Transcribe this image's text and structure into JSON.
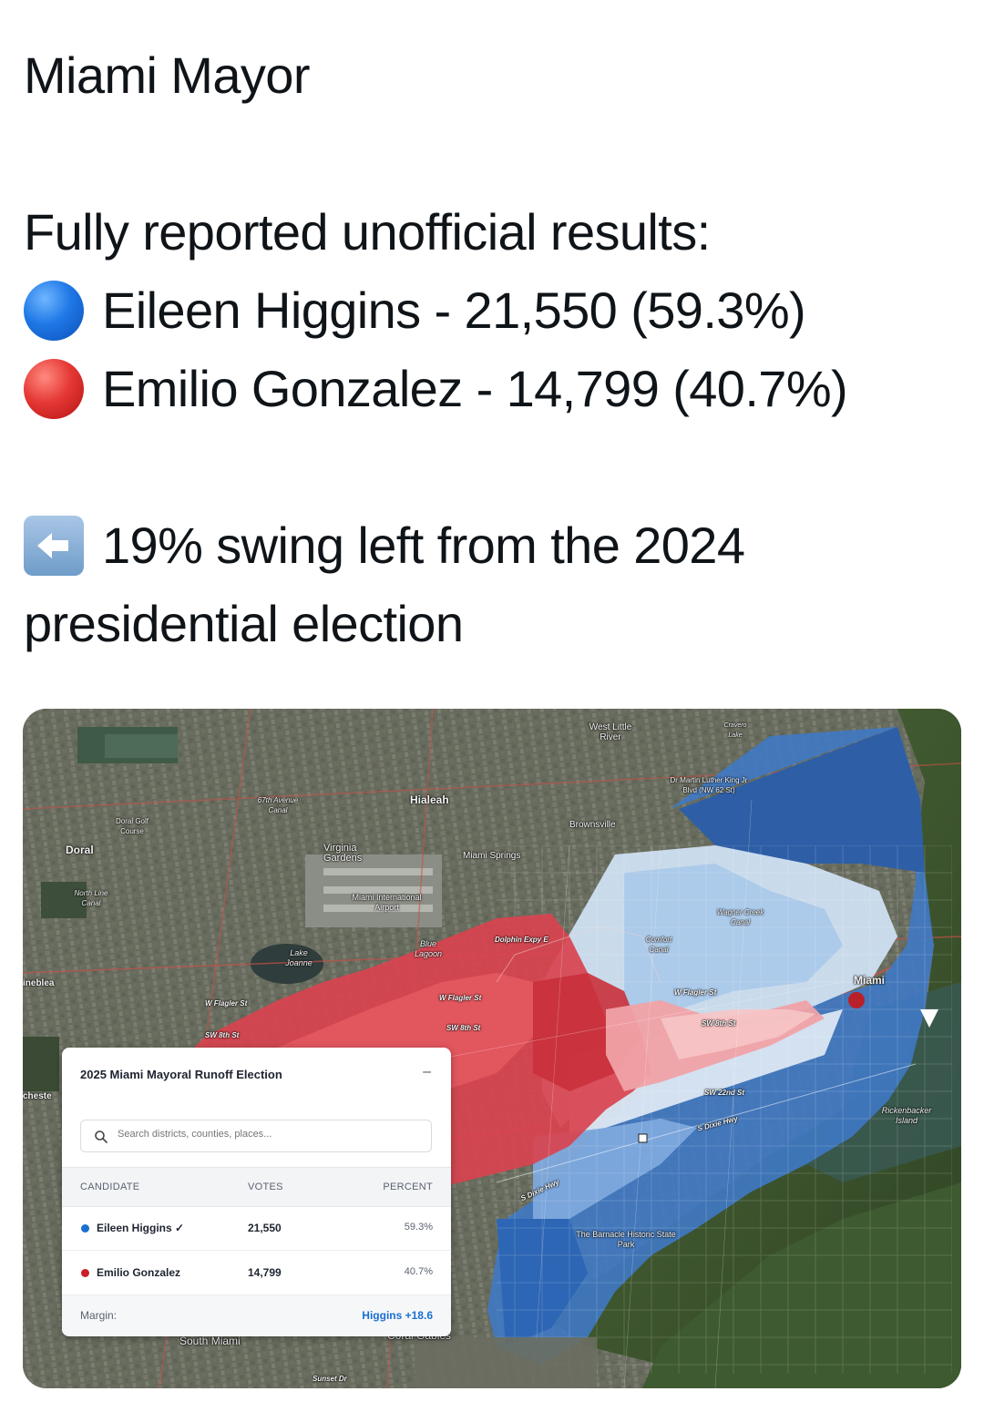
{
  "post": {
    "title": "Miami Mayor",
    "subtitle": "Fully reported unofficial results:",
    "candidates": [
      {
        "emoji": "blue-circle-icon",
        "text": "Eileen Higgins - 21,550 (59.3%)"
      },
      {
        "emoji": "red-circle-icon",
        "text": "Emilio Gonzalez - 14,799 (40.7%)"
      }
    ],
    "swing_line_1": "19% swing left from the 2024",
    "swing_line_2": "presidential election",
    "swing_emoji": "left-arrow-icon"
  },
  "map": {
    "labels": {
      "hialeah": "Hialeah",
      "west_little_river": "West Little River",
      "doral": "Doral",
      "doral_golf": "Doral Golf Course",
      "virginia_gardens": "Virginia Gardens",
      "miami_springs": "Miami Springs",
      "brownsville": "Brownsville",
      "mlk": "Dr Martin Luther King Jr Blvd (NW 62 St)",
      "airport": "Miami International Airport",
      "blue_lagoon": "Blue Lagoon",
      "lake_joanne": "Lake Joanne",
      "north_line_canal": "North Line Canal",
      "ave67": "67th Avenue Canal",
      "wagner": "Wagner Creek Canal",
      "comfort": "Comfort Canal",
      "miami": "Miami",
      "rickenbacker": "Rickenbacker Island",
      "barnacle": "The Barnacle Historic State Park",
      "south_miami": "South Miami",
      "coral_gables": "Coral Gables",
      "sunset": "Sunset Dr",
      "fontainebleau": "ineblea",
      "chester": "cheste",
      "w_flagler": "W Flagler St",
      "sw8th": "SW 8th St",
      "sw22nd": "SW 22nd St",
      "s_dixie": "S Dixie Hwy",
      "dolphin": "Dolphin Expy E",
      "caravan_lake": "Cravero Lake"
    },
    "colors": {
      "higgins": "#1a6fd1",
      "gonzalez": "#c9202a"
    }
  },
  "panel": {
    "title": "2025 Miami Mayoral Runoff Election",
    "collapse_glyph": "–",
    "search_placeholder": "Search districts, counties, places...",
    "columns": {
      "candidate": "CANDIDATE",
      "votes": "VOTES",
      "percent": "PERCENT"
    },
    "rows": [
      {
        "name": "Eileen Higgins ✓",
        "votes": "21,550",
        "percent": "59.3%",
        "color": "#1a6fd1"
      },
      {
        "name": "Emilio Gonzalez",
        "votes": "14,799",
        "percent": "40.7%",
        "color": "#c9202a"
      }
    ],
    "margin_label": "Margin:",
    "margin_value": "Higgins +18.6"
  }
}
